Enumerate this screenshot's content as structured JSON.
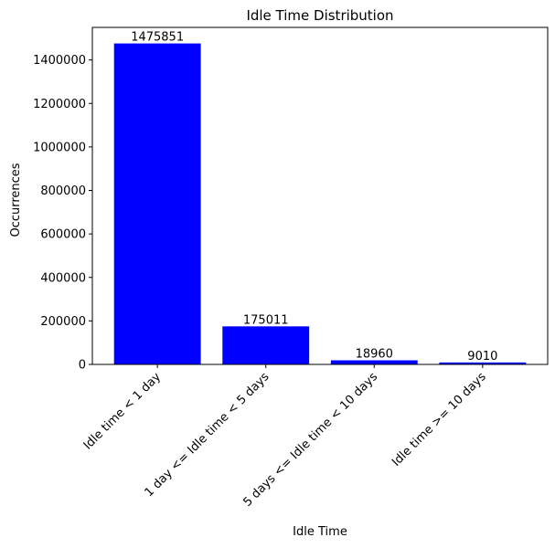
{
  "chart_data": {
    "type": "bar",
    "title": "Idle Time Distribution",
    "xlabel": "Idle Time",
    "ylabel": "Occurrences",
    "categories": [
      "Idle time < 1 day",
      "1 day <= Idle time < 5 days",
      "5 days <= Idle time < 10 days",
      "Idle time >= 10 days"
    ],
    "values": [
      1475851,
      175011,
      18960,
      9010
    ],
    "data_labels": [
      "1475851",
      "175011",
      "18960",
      "9010"
    ],
    "ylim": [
      0,
      1549644
    ],
    "yticks": [
      0,
      200000,
      400000,
      600000,
      800000,
      1000000,
      1200000,
      1400000
    ],
    "ytick_labels": [
      "0",
      "200000",
      "400000",
      "600000",
      "800000",
      "1000000",
      "1200000",
      "1400000"
    ],
    "bar_color": "#0000ff",
    "grid": false,
    "legend": "none"
  }
}
